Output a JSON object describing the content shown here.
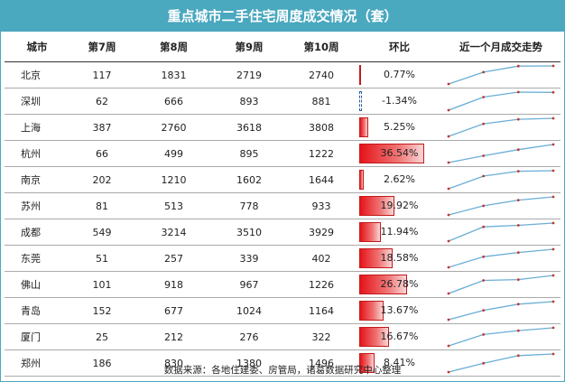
{
  "title": "重点城市二手住宅周度成交情况（套）",
  "source": "数据来源：各地住建委、房管局，诸葛数据研究中心整理",
  "chart_data": {
    "type": "table",
    "columns": [
      "城市",
      "第7周",
      "第8周",
      "第9周",
      "第10周",
      "环比",
      "近一个月成交走势"
    ],
    "weeks": [
      "第7周",
      "第8周",
      "第9周",
      "第10周"
    ],
    "rows": [
      {
        "city": "北京",
        "values": [
          117,
          1831,
          2719,
          2740
        ],
        "mom": "0.77%",
        "mom_value": 0.77
      },
      {
        "city": "深圳",
        "values": [
          62,
          666,
          893,
          881
        ],
        "mom": "-1.34%",
        "mom_value": -1.34
      },
      {
        "city": "上海",
        "values": [
          387,
          2760,
          3618,
          3808
        ],
        "mom": "5.25%",
        "mom_value": 5.25
      },
      {
        "city": "杭州",
        "values": [
          66,
          499,
          895,
          1222
        ],
        "mom": "36.54%",
        "mom_value": 36.54
      },
      {
        "city": "南京",
        "values": [
          202,
          1210,
          1602,
          1644
        ],
        "mom": "2.62%",
        "mom_value": 2.62
      },
      {
        "city": "苏州",
        "values": [
          81,
          513,
          778,
          933
        ],
        "mom": "19.92%",
        "mom_value": 19.92
      },
      {
        "city": "成都",
        "values": [
          549,
          3214,
          3510,
          3929
        ],
        "mom": "11.94%",
        "mom_value": 11.94
      },
      {
        "city": "东莞",
        "values": [
          51,
          257,
          339,
          402
        ],
        "mom": "18.58%",
        "mom_value": 18.58
      },
      {
        "city": "佛山",
        "values": [
          101,
          918,
          967,
          1226
        ],
        "mom": "26.78%",
        "mom_value": 26.78
      },
      {
        "city": "青岛",
        "values": [
          152,
          677,
          1024,
          1164
        ],
        "mom": "13.67%",
        "mom_value": 13.67
      },
      {
        "city": "厦门",
        "values": [
          25,
          212,
          276,
          322
        ],
        "mom": "16.67%",
        "mom_value": 16.67
      },
      {
        "city": "郑州",
        "values": [
          186,
          830,
          1380,
          1496
        ],
        "mom": "8.41%",
        "mom_value": 8.41
      }
    ],
    "colors": {
      "header_bg": "#4aa8bf",
      "bar": "#e5141a",
      "negative_bar": "#2a5d9c",
      "sparkline": "#6aaed6",
      "sparkline_point": "#c0392b"
    }
  }
}
